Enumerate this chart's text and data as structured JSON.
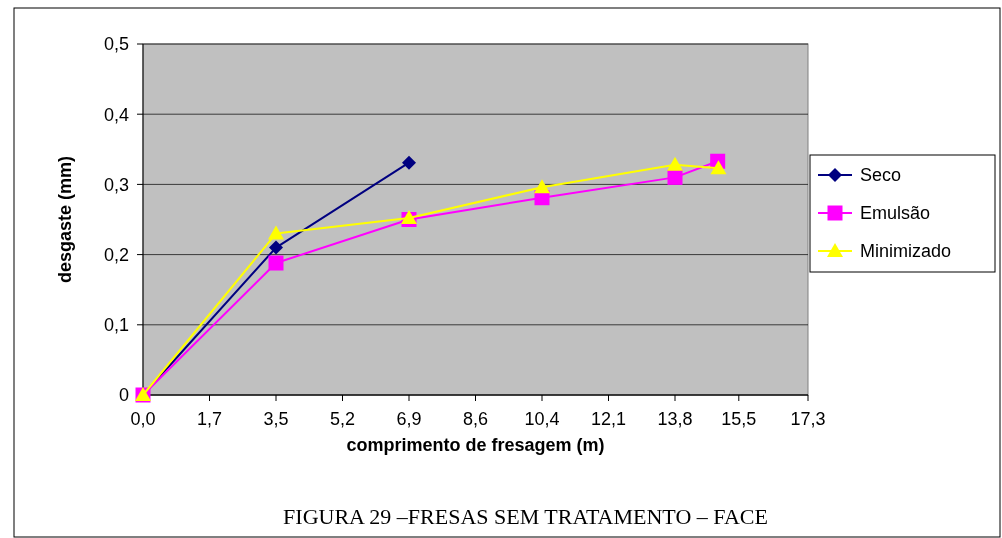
{
  "chart_data": {
    "type": "line",
    "xlabel": "comprimento de fresagem (m)",
    "ylabel": "desgaste (mm)",
    "xlim": [
      0,
      17.3
    ],
    "xticks": [
      {
        "value": 0,
        "label": "0,0"
      },
      {
        "value": 1.73,
        "label": "1,7"
      },
      {
        "value": 3.46,
        "label": "3,5"
      },
      {
        "value": 5.19,
        "label": "5,2"
      },
      {
        "value": 6.92,
        "label": "6,9"
      },
      {
        "value": 8.65,
        "label": "8,6"
      },
      {
        "value": 10.38,
        "label": "10,4"
      },
      {
        "value": 12.11,
        "label": "12,1"
      },
      {
        "value": 13.84,
        "label": "13,8"
      },
      {
        "value": 15.5,
        "label": "15,5"
      },
      {
        "value": 17.3,
        "label": "17,3"
      }
    ],
    "ylim": [
      0,
      0.5
    ],
    "yticks": [
      {
        "value": 0,
        "label": "0"
      },
      {
        "value": 0.1,
        "label": "0,1"
      },
      {
        "value": 0.2,
        "label": "0,2"
      },
      {
        "value": 0.3,
        "label": "0,3"
      },
      {
        "value": 0.4,
        "label": "0,4"
      },
      {
        "value": 0.5,
        "label": "0,5"
      }
    ],
    "grid": "y",
    "legend": "right",
    "series": [
      {
        "name": "Seco",
        "color": "#000080",
        "marker": "diamond",
        "x": [
          0,
          3.46,
          6.92
        ],
        "values": [
          0,
          0.21,
          0.331
        ]
      },
      {
        "name": "Emulsão",
        "color": "#ff00ff",
        "marker": "square",
        "x": [
          0,
          3.46,
          6.92,
          10.38,
          13.84,
          14.95
        ],
        "values": [
          0,
          0.188,
          0.25,
          0.281,
          0.31,
          0.333
        ]
      },
      {
        "name": "Minimizado",
        "color": "#ffff00",
        "marker": "triangle",
        "x": [
          0,
          3.46,
          6.92,
          10.38,
          13.84,
          14.97
        ],
        "values": [
          0,
          0.23,
          0.252,
          0.296,
          0.328,
          0.323
        ]
      }
    ],
    "annotations": [
      "FIGURA 29 –FRESAS SEM TRATAMENTO – FACE"
    ]
  }
}
